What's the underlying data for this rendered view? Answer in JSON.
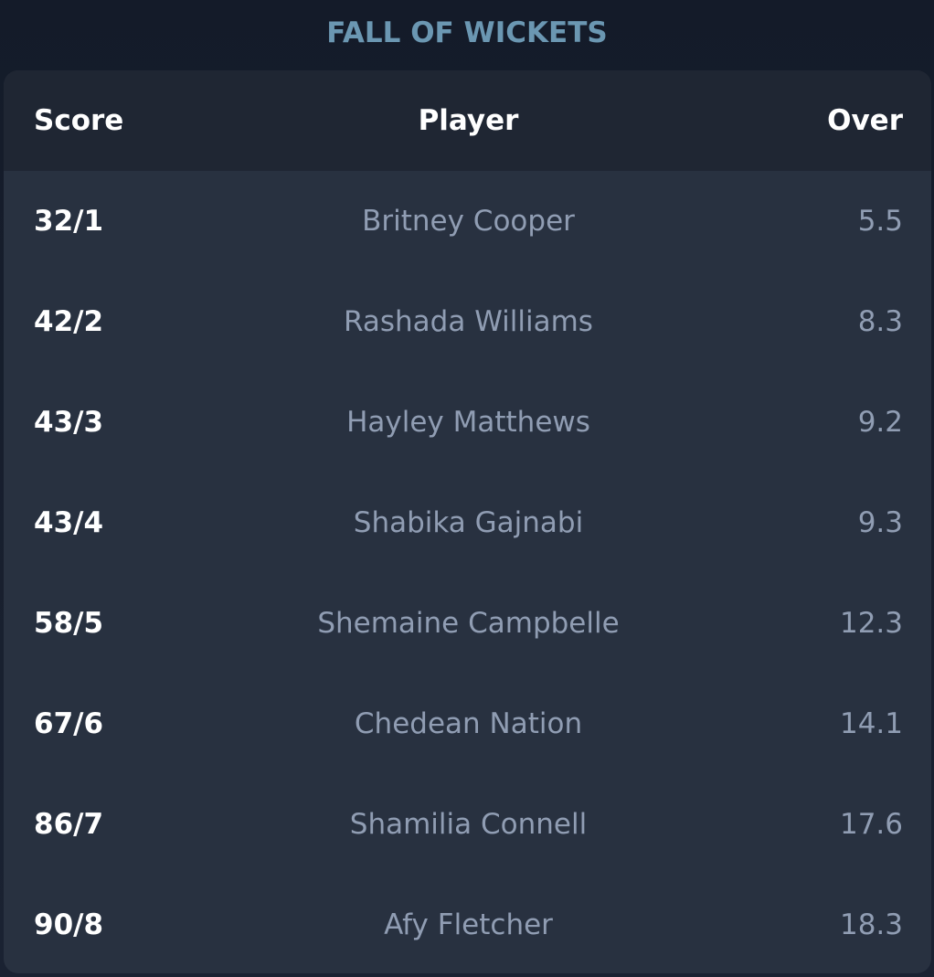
{
  "title": "FALL OF WICKETS",
  "columns": {
    "score": "Score",
    "player": "Player",
    "over": "Over"
  },
  "rows": [
    {
      "score": "32/1",
      "player": "Britney Cooper",
      "over": "5.5"
    },
    {
      "score": "42/2",
      "player": "Rashada Williams",
      "over": "8.3"
    },
    {
      "score": "43/3",
      "player": "Hayley Matthews",
      "over": "9.2"
    },
    {
      "score": "43/4",
      "player": "Shabika Gajnabi",
      "over": "9.3"
    },
    {
      "score": "58/5",
      "player": "Shemaine Campbelle",
      "over": "12.3"
    },
    {
      "score": "67/6",
      "player": "Chedean Nation",
      "over": "14.1"
    },
    {
      "score": "86/7",
      "player": "Shamilia Connell",
      "over": "17.6"
    },
    {
      "score": "90/8",
      "player": "Afy Fletcher",
      "over": "18.3"
    }
  ],
  "colors": {
    "title": "#6b97b2",
    "card": "#283140",
    "header": "#1f2633",
    "muted_text": "#909db3"
  }
}
